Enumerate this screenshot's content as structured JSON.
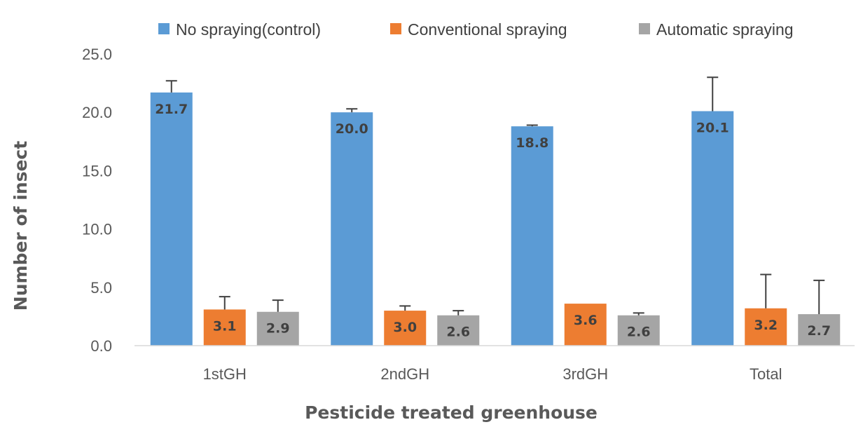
{
  "chart_data": {
    "type": "bar",
    "title": "",
    "xlabel": "Pesticide treated greenhouse",
    "ylabel": "Number of insect",
    "categories": [
      "1stGH",
      "2ndGH",
      "3rdGH",
      "Total"
    ],
    "ylim": [
      0,
      25
    ],
    "yticks": [
      "0.0",
      "5.0",
      "10.0",
      "15.0",
      "20.0",
      "25.0"
    ],
    "grid": false,
    "legend_position": "top",
    "series": [
      {
        "name": "No spraying(control)",
        "color": "#5b9bd5",
        "values": [
          21.7,
          20.0,
          18.8,
          20.1
        ],
        "labels": [
          "21.7",
          "20.0",
          "18.8",
          "20.1"
        ],
        "error": [
          1.0,
          0.3,
          0.1,
          2.9
        ]
      },
      {
        "name": "Conventional spraying",
        "color": "#ed7d31",
        "values": [
          3.1,
          3.0,
          3.6,
          3.2
        ],
        "labels": [
          "3.1",
          "3.0",
          "3.6",
          "3.2"
        ],
        "error": [
          1.1,
          0.4,
          0.0,
          2.9
        ]
      },
      {
        "name": "Automatic spraying",
        "color": "#a5a5a5",
        "values": [
          2.9,
          2.6,
          2.6,
          2.7
        ],
        "labels": [
          "2.9",
          "2.6",
          "2.6",
          "2.7"
        ],
        "error": [
          1.0,
          0.4,
          0.2,
          2.9
        ]
      }
    ]
  }
}
